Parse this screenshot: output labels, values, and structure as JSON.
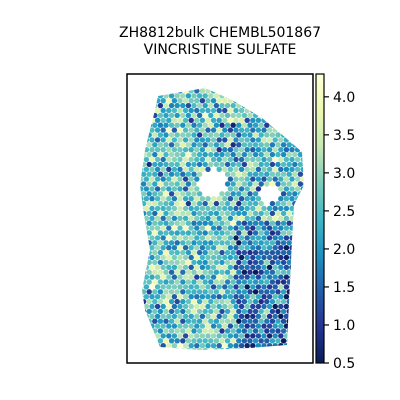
{
  "chart_data": {
    "type": "scatter",
    "subtype": "hexagonal spatial spots colored by value",
    "title_lines": [
      "ZH8812bulk CHEMBL501867",
      "VINCRISTINE SULFATE"
    ],
    "colormap": "YlGnBu",
    "colorbar": {
      "min": 0.5,
      "max": 4.3,
      "ticks": [
        0.5,
        1.0,
        1.5,
        2.0,
        2.5,
        3.0,
        3.5,
        4.0
      ],
      "tick_labels": [
        "0.5",
        "1.0",
        "1.5",
        "2.0",
        "2.5",
        "3.0",
        "3.5",
        "4.0"
      ]
    },
    "colormap_stops": [
      "#081d58",
      "#253494",
      "#225ea8",
      "#1d91c0",
      "#41b6c4",
      "#7fcdbb",
      "#c7e9b4",
      "#edf8b1",
      "#ffffd9"
    ],
    "axes_visible": false,
    "grid": false,
    "value_distribution": {
      "upper_region_mean": 2.5,
      "lower_left_mean": 2.6,
      "lower_right_mean": 1.6,
      "min": 0.5,
      "max": 4.3
    }
  }
}
